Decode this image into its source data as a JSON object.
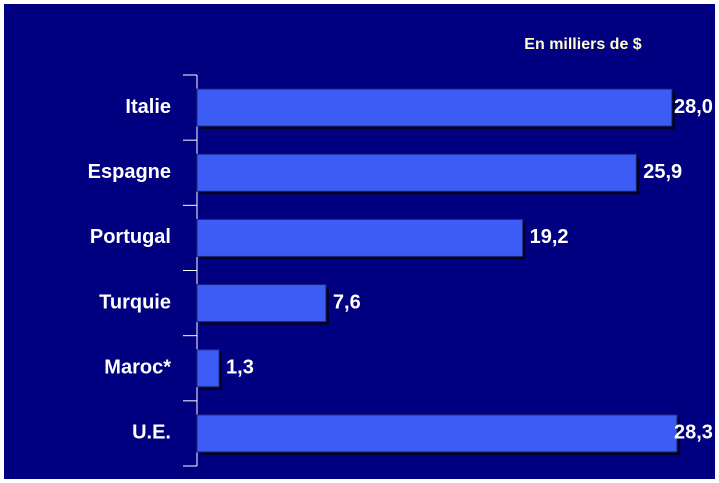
{
  "chart_data": {
    "type": "barh",
    "annotation": "En milliers de $",
    "categories": [
      "Italie",
      "Espagne",
      "Portugal",
      "Turquie",
      "Maroc*",
      "U.E."
    ],
    "values": [
      28.0,
      25.9,
      19.2,
      7.6,
      1.3,
      28.3
    ],
    "value_labels": [
      "28,0",
      "25,9",
      "19,2",
      "7,6",
      "1,3",
      "28,3"
    ],
    "color": "#3d5cf5"
  }
}
